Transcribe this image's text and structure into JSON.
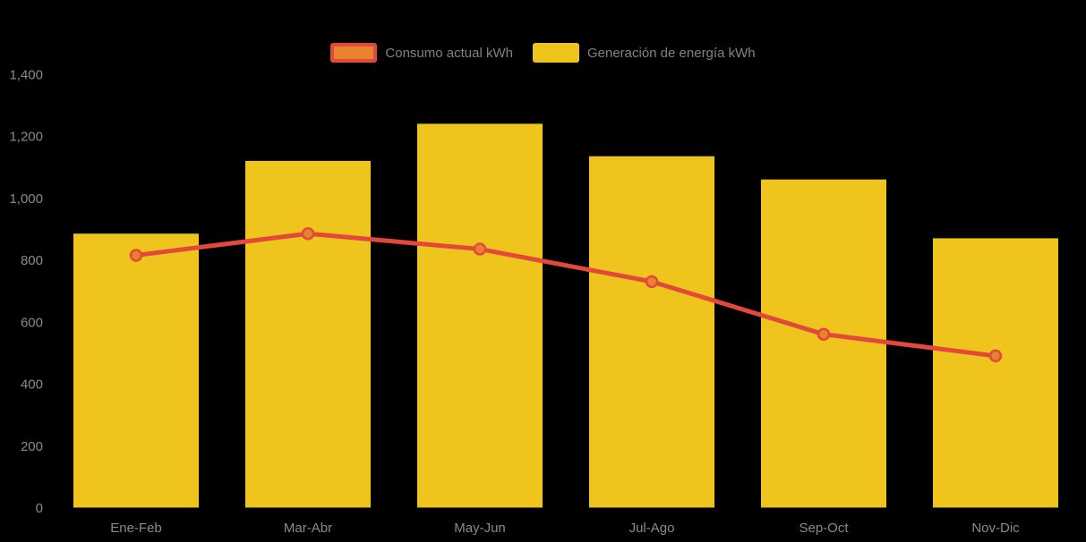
{
  "colors": {
    "background": "#000000",
    "bar": "#EFC41D",
    "line": "#E2493B",
    "marker_fill": "#E8822D",
    "label_text": "#828282",
    "tick_text": "#8A8A8A"
  },
  "legend": {
    "items": [
      {
        "label": "Consumo actual kWh"
      },
      {
        "label": "Generación de energía kWh"
      }
    ]
  },
  "chart_data": {
    "type": "bar",
    "subtype": "bar-with-line-overlay",
    "title": "",
    "xlabel": "",
    "ylabel": "",
    "categories": [
      "Ene-Feb",
      "Mar-Abr",
      "May-Jun",
      "Jul-Ago",
      "Sep-Oct",
      "Nov-Dic"
    ],
    "series": [
      {
        "name": "Consumo actual kWh",
        "type": "line",
        "color": "#E2493B",
        "marker_fill": "#E8822D",
        "values": [
          815,
          885,
          835,
          730,
          560,
          490
        ]
      },
      {
        "name": "Generación de energía kWh",
        "type": "bar",
        "color": "#EFC41D",
        "values": [
          885,
          1120,
          1240,
          1135,
          1060,
          870
        ]
      }
    ],
    "y_axis": {
      "min": 0,
      "max": 1400,
      "tick_interval": 200,
      "tick_labels": [
        "0",
        "200",
        "400",
        "600",
        "800",
        "1,000",
        "1,200",
        "1,400"
      ]
    },
    "grid": false,
    "legend_position": "top"
  }
}
